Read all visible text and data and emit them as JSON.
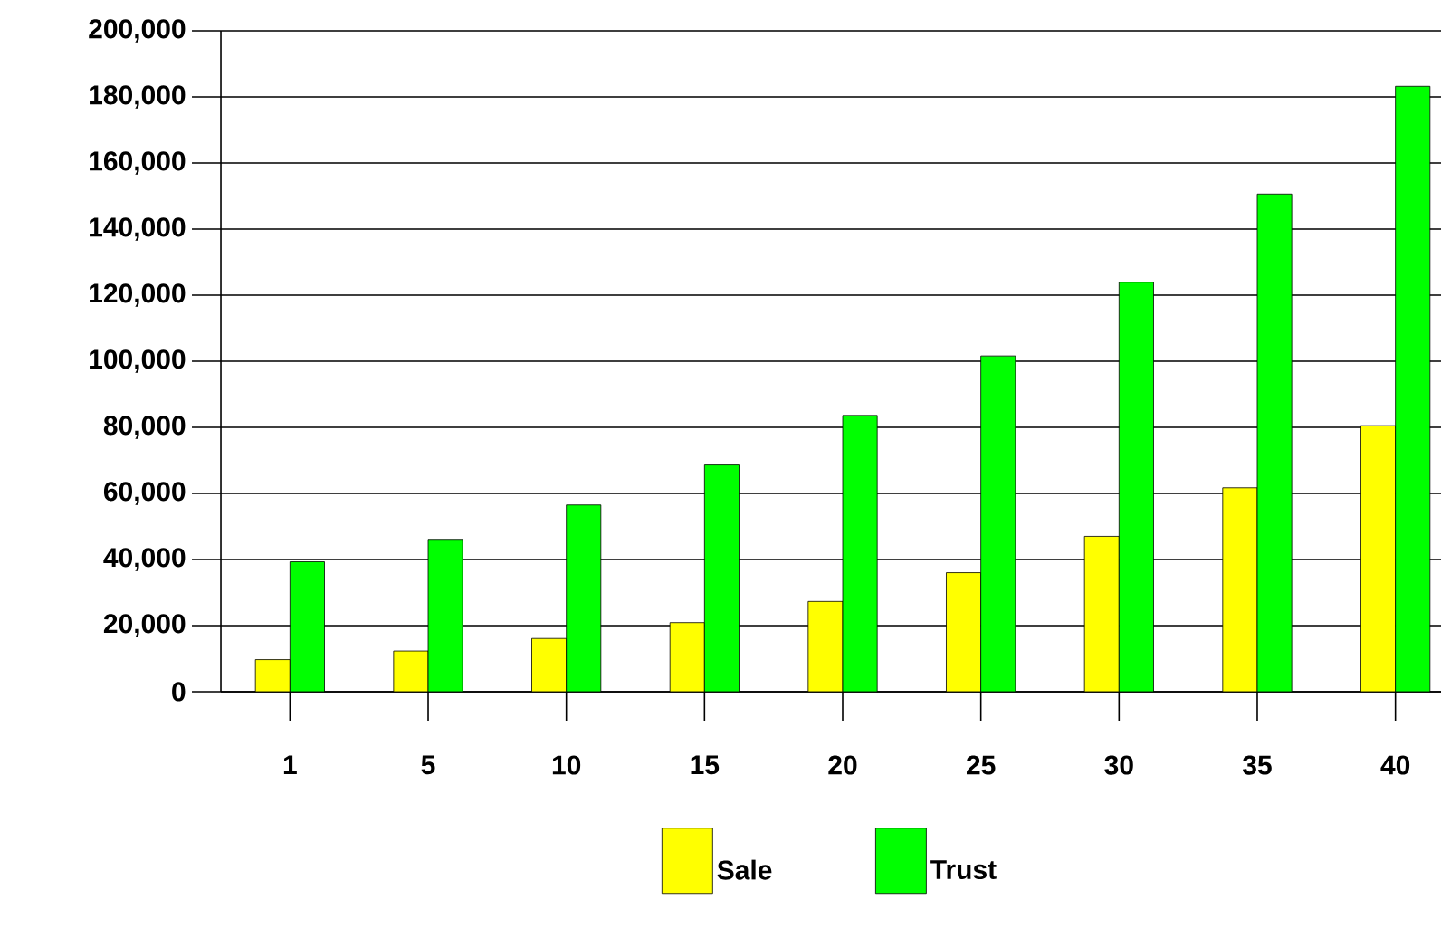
{
  "chart_data": {
    "type": "bar",
    "categories": [
      "1",
      "5",
      "10",
      "15",
      "20",
      "25",
      "30",
      "35",
      "40"
    ],
    "series": [
      {
        "name": "Sale",
        "color": "#ffff00",
        "values": [
          9700,
          12300,
          16100,
          20900,
          27300,
          36000,
          47000,
          61700,
          80500
        ]
      },
      {
        "name": "Trust",
        "color": "#00ff00",
        "values": [
          39300,
          46100,
          56500,
          68600,
          83600,
          101600,
          123900,
          150600,
          183200
        ]
      }
    ],
    "ylim": [
      0,
      200000
    ],
    "yticks": [
      0,
      {
        "value": 20000,
        "label": "20,000"
      },
      {
        "value": 40000,
        "label": "40,000"
      },
      {
        "value": 60000,
        "label": "60,000"
      },
      {
        "value": 80000,
        "label": "80,000"
      },
      {
        "value": 100000,
        "label": "100,000"
      },
      {
        "value": 120000,
        "label": "120,000"
      },
      {
        "value": 140000,
        "label": "140,000"
      },
      {
        "value": 160000,
        "label": "160,000"
      },
      {
        "value": 180000,
        "label": "180,000"
      },
      {
        "value": 200000,
        "label": "200,000"
      }
    ],
    "grid": "y",
    "legend": "bottom"
  }
}
